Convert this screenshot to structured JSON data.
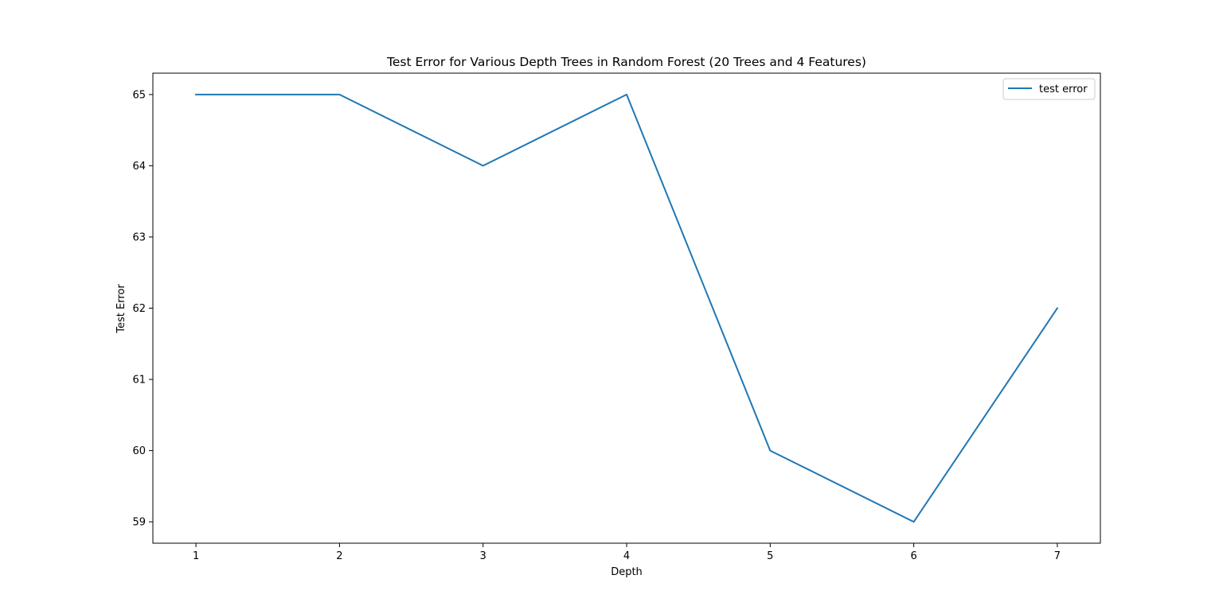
{
  "chart_data": {
    "type": "line",
    "title": "Test Error for Various Depth Trees in Random Forest (20 Trees and 4 Features)",
    "xlabel": "Depth",
    "ylabel": "Test Error",
    "x": [
      1,
      2,
      3,
      4,
      5,
      6,
      7
    ],
    "series": [
      {
        "name": "test error",
        "color": "#1f77b4",
        "values": [
          65,
          65,
          64,
          65,
          60,
          59,
          62
        ]
      }
    ],
    "xticks": [
      1,
      2,
      3,
      4,
      5,
      6,
      7
    ],
    "yticks": [
      59,
      60,
      61,
      62,
      63,
      64,
      65
    ],
    "xlim": [
      0.7,
      7.3
    ],
    "ylim": [
      58.7,
      65.3
    ],
    "grid": false,
    "legend_position": "top-right"
  }
}
